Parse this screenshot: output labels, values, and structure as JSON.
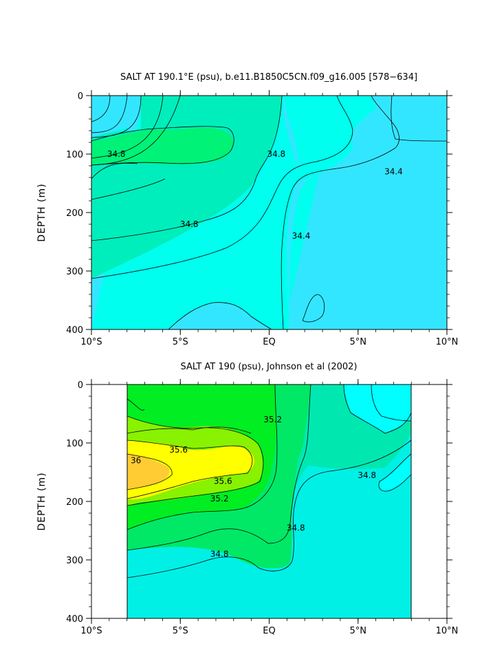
{
  "chart_data": [
    {
      "type": "contour",
      "title": "SALT AT 190.1°E (psu), b.e11.B1850C5CN.f09_g16.005 [578−634]",
      "ylabel": "DEPTH (m)",
      "xlim": [
        -10,
        10
      ],
      "ylim": [
        400,
        0
      ],
      "xticks": [
        "10°S",
        "5°S",
        "EQ",
        "5°N",
        "10°N"
      ],
      "yticks": [
        "0",
        "100",
        "200",
        "300",
        "400"
      ],
      "contour_interval": 0.2,
      "contour_labels": [
        {
          "text": "34.8",
          "x": -8.6,
          "y": 100
        },
        {
          "text": "34.8",
          "x": -4.5,
          "y": 220
        },
        {
          "text": "34.8",
          "x": 0.4,
          "y": 100
        },
        {
          "text": "34.4",
          "x": 1.8,
          "y": 240
        },
        {
          "text": "34.4",
          "x": 7.0,
          "y": 130
        }
      ],
      "colors": [
        "#00d2ff",
        "#33e6ff",
        "#00ffee",
        "#00eebb",
        "#00f277"
      ]
    },
    {
      "type": "contour",
      "title": "SALT AT 190 (psu), Johnson et al (2002)",
      "ylabel": "DEPTH (m)",
      "xlim": [
        -10,
        10
      ],
      "ylim": [
        400,
        0
      ],
      "data_xrange": [
        -8,
        8
      ],
      "xticks": [
        "10°S",
        "5°S",
        "EQ",
        "5°N",
        "10°N"
      ],
      "yticks": [
        "0",
        "100",
        "200",
        "300",
        "400"
      ],
      "contour_interval": 0.2,
      "contour_labels": [
        {
          "text": "35.2",
          "x": 0.2,
          "y": 60
        },
        {
          "text": "35.6",
          "x": -5.1,
          "y": 112
        },
        {
          "text": "36",
          "x": -7.5,
          "y": 130
        },
        {
          "text": "35.6",
          "x": -2.6,
          "y": 165
        },
        {
          "text": "35.2",
          "x": -2.8,
          "y": 195
        },
        {
          "text": "34.8",
          "x": 1.5,
          "y": 245
        },
        {
          "text": "34.8",
          "x": -2.8,
          "y": 290
        },
        {
          "text": "34.8",
          "x": 5.5,
          "y": 155
        }
      ],
      "colors": [
        "#00f0e6",
        "#00e8b0",
        "#00e866",
        "#00ee22",
        "#88f200",
        "#ffff00",
        "#ffcc33",
        "#00ffff"
      ]
    }
  ]
}
